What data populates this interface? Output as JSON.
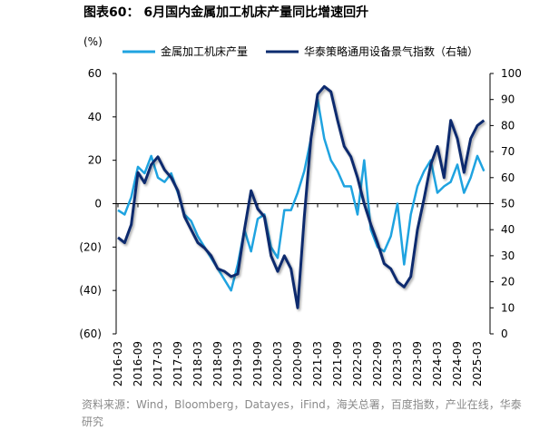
{
  "chart_data": {
    "type": "line",
    "title": "图表60： 6月国内金属加工机床产量同比增速回升",
    "y_label": "(%)",
    "source": "资料来源：Wind，Bloomberg，Datayes，iFind，海关总署，百度指数，产业在线，华泰研究",
    "categories": [
      "2016-03",
      null,
      null,
      "2016-09",
      null,
      null,
      "2017-03",
      null,
      null,
      "2017-09",
      null,
      null,
      "2018-03",
      null,
      null,
      "2018-09",
      null,
      null,
      "2019-03",
      null,
      null,
      "2019-09",
      null,
      null,
      "2020-03",
      null,
      null,
      "2020-09",
      null,
      null,
      "2021-03",
      null,
      null,
      "2021-09",
      null,
      null,
      "2022-03",
      null,
      null,
      "2022-09",
      null,
      null,
      "2023-03",
      null,
      null,
      "2023-09",
      null,
      null,
      "2024-03",
      null,
      null,
      "2024-09",
      null,
      null,
      "2025-03",
      null
    ],
    "series": [
      {
        "name": "金属加工机床产量",
        "color": "#1fa3e0",
        "axis": "y",
        "values": [
          -3,
          -5,
          3,
          17,
          14,
          22,
          12,
          10,
          14,
          5,
          -5,
          -8,
          -15,
          -20,
          -25,
          -30,
          -35,
          -40,
          -28,
          -12,
          -22,
          -7,
          -5,
          -20,
          -25,
          -3,
          -3,
          5,
          15,
          30,
          48,
          30,
          20,
          15,
          8,
          8,
          -5,
          20,
          -12,
          -20,
          -22,
          -15,
          0,
          -28,
          -5,
          8,
          15,
          20,
          5,
          8,
          10,
          18,
          5,
          12,
          22,
          15
        ]
      },
      {
        "name": "华泰策略通用设备景气指数（右轴）",
        "color": "#0b2b6e",
        "axis": "y2",
        "values": [
          37,
          35,
          42,
          62,
          58,
          65,
          68,
          63,
          60,
          55,
          45,
          40,
          35,
          33,
          30,
          25,
          24,
          22,
          23,
          40,
          55,
          48,
          45,
          30,
          24,
          30,
          25,
          10,
          45,
          75,
          92,
          95,
          93,
          82,
          72,
          68,
          60,
          50,
          42,
          35,
          27,
          25,
          20,
          18,
          22,
          40,
          52,
          65,
          72,
          60,
          82,
          75,
          62,
          75,
          80,
          82
        ]
      }
    ],
    "ylim": [
      -60,
      60
    ],
    "yticks": [
      {
        "value": -60,
        "label": "(60)"
      },
      {
        "value": -40,
        "label": "(40)"
      },
      {
        "value": -20,
        "label": "(20)"
      },
      0,
      20,
      40,
      60
    ],
    "y2lim": [
      0,
      100
    ],
    "y2ticks": [
      0,
      10,
      20,
      30,
      40,
      50,
      60,
      70,
      80,
      90,
      100
    ],
    "grid": false,
    "legend": "top"
  }
}
